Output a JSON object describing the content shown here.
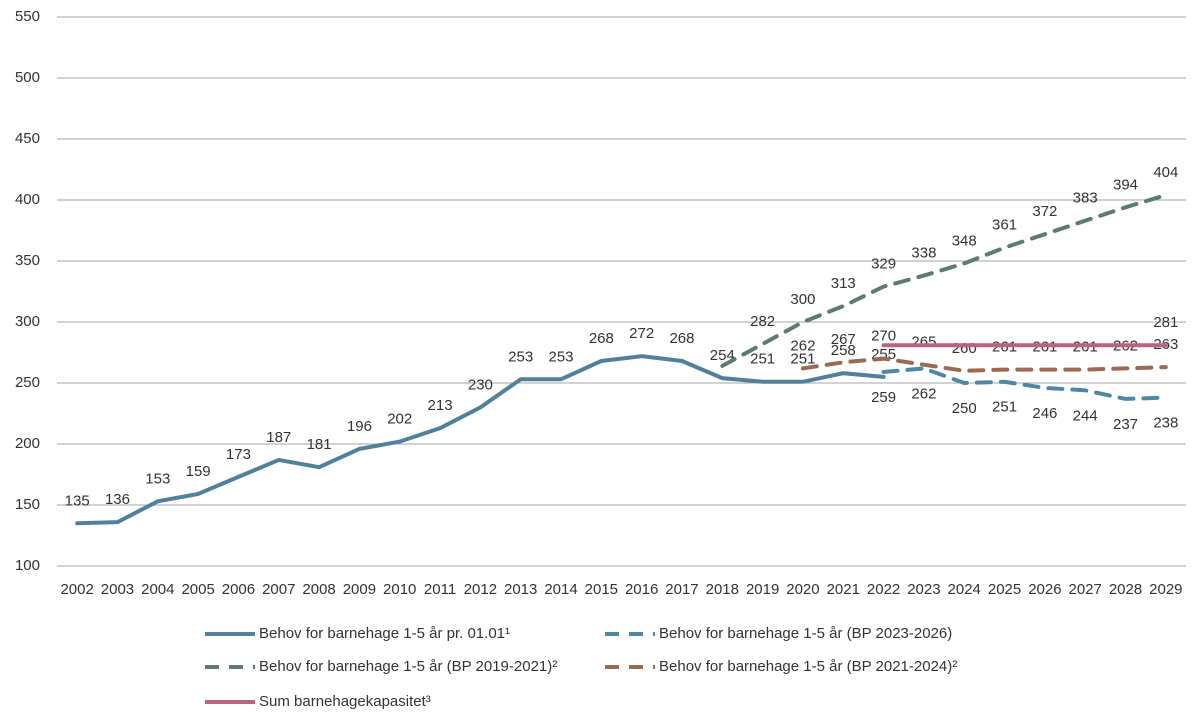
{
  "chart_data": {
    "type": "line",
    "categories": [
      "2002",
      "2003",
      "2004",
      "2005",
      "2006",
      "2007",
      "2008",
      "2009",
      "2010",
      "2011",
      "2012",
      "2013",
      "2014",
      "2015",
      "2016",
      "2017",
      "2018",
      "2019",
      "2020",
      "2021",
      "2022",
      "2023",
      "2024",
      "2025",
      "2026",
      "2027",
      "2028",
      "2029"
    ],
    "ylim": [
      100,
      550
    ],
    "yticks": [
      100,
      150,
      200,
      250,
      300,
      350,
      400,
      450,
      500,
      550
    ],
    "grid": true,
    "legend": "bottom",
    "series": [
      {
        "name": "Behov for barnehage 1-5 år pr. 01.01¹",
        "color": "#4f819b",
        "dash": "solid",
        "values": [
          135,
          136,
          153,
          159,
          173,
          187,
          181,
          196,
          202,
          213,
          230,
          253,
          253,
          268,
          272,
          268,
          254,
          251,
          251,
          258,
          255,
          null,
          null,
          null,
          null,
          null,
          null,
          null
        ]
      },
      {
        "name": "Behov for barnehage 1-5 år (BP 2023-2026)",
        "color": "#4f87a6",
        "dash": "dashed",
        "values": [
          null,
          null,
          null,
          null,
          null,
          null,
          null,
          null,
          null,
          null,
          null,
          null,
          null,
          null,
          null,
          null,
          null,
          null,
          null,
          null,
          259,
          262,
          250,
          251,
          246,
          244,
          237,
          238
        ]
      },
      {
        "name": "Behov for barnehage 1-5 år (BP 2019-2021)²",
        "color": "#5b7d6c",
        "dash": "dashed",
        "values": [
          null,
          null,
          null,
          null,
          null,
          null,
          null,
          null,
          null,
          null,
          null,
          null,
          null,
          null,
          null,
          null,
          264,
          282,
          300,
          313,
          329,
          338,
          348,
          361,
          372,
          383,
          394,
          404
        ],
        "value_labels": [
          null,
          null,
          null,
          null,
          null,
          null,
          null,
          null,
          null,
          null,
          null,
          null,
          null,
          null,
          null,
          null,
          null,
          "282",
          "300",
          "313",
          "329",
          "338",
          "348",
          "361",
          "372",
          "383",
          "394",
          "404"
        ]
      },
      {
        "name": "Behov for barnehage 1-5 år (BP 2021-2024)²",
        "color": "#9c6a52",
        "dash": "dashed",
        "values": [
          null,
          null,
          null,
          null,
          null,
          null,
          null,
          null,
          null,
          null,
          null,
          null,
          null,
          null,
          null,
          null,
          null,
          null,
          262,
          267,
          270,
          265,
          260,
          261,
          261,
          261,
          262,
          263
        ]
      },
      {
        "name": "Sum barnehagekapasitet³",
        "color": "#c0607f",
        "dash": "solid",
        "values": [
          null,
          null,
          null,
          null,
          null,
          null,
          null,
          null,
          null,
          null,
          null,
          null,
          null,
          null,
          null,
          null,
          null,
          null,
          null,
          null,
          281,
          281,
          281,
          281,
          281,
          281,
          281,
          281
        ],
        "value_labels": [
          null,
          null,
          null,
          null,
          null,
          null,
          null,
          null,
          null,
          null,
          null,
          null,
          null,
          null,
          null,
          null,
          null,
          null,
          null,
          null,
          null,
          null,
          null,
          null,
          null,
          null,
          null,
          "281"
        ]
      }
    ]
  }
}
